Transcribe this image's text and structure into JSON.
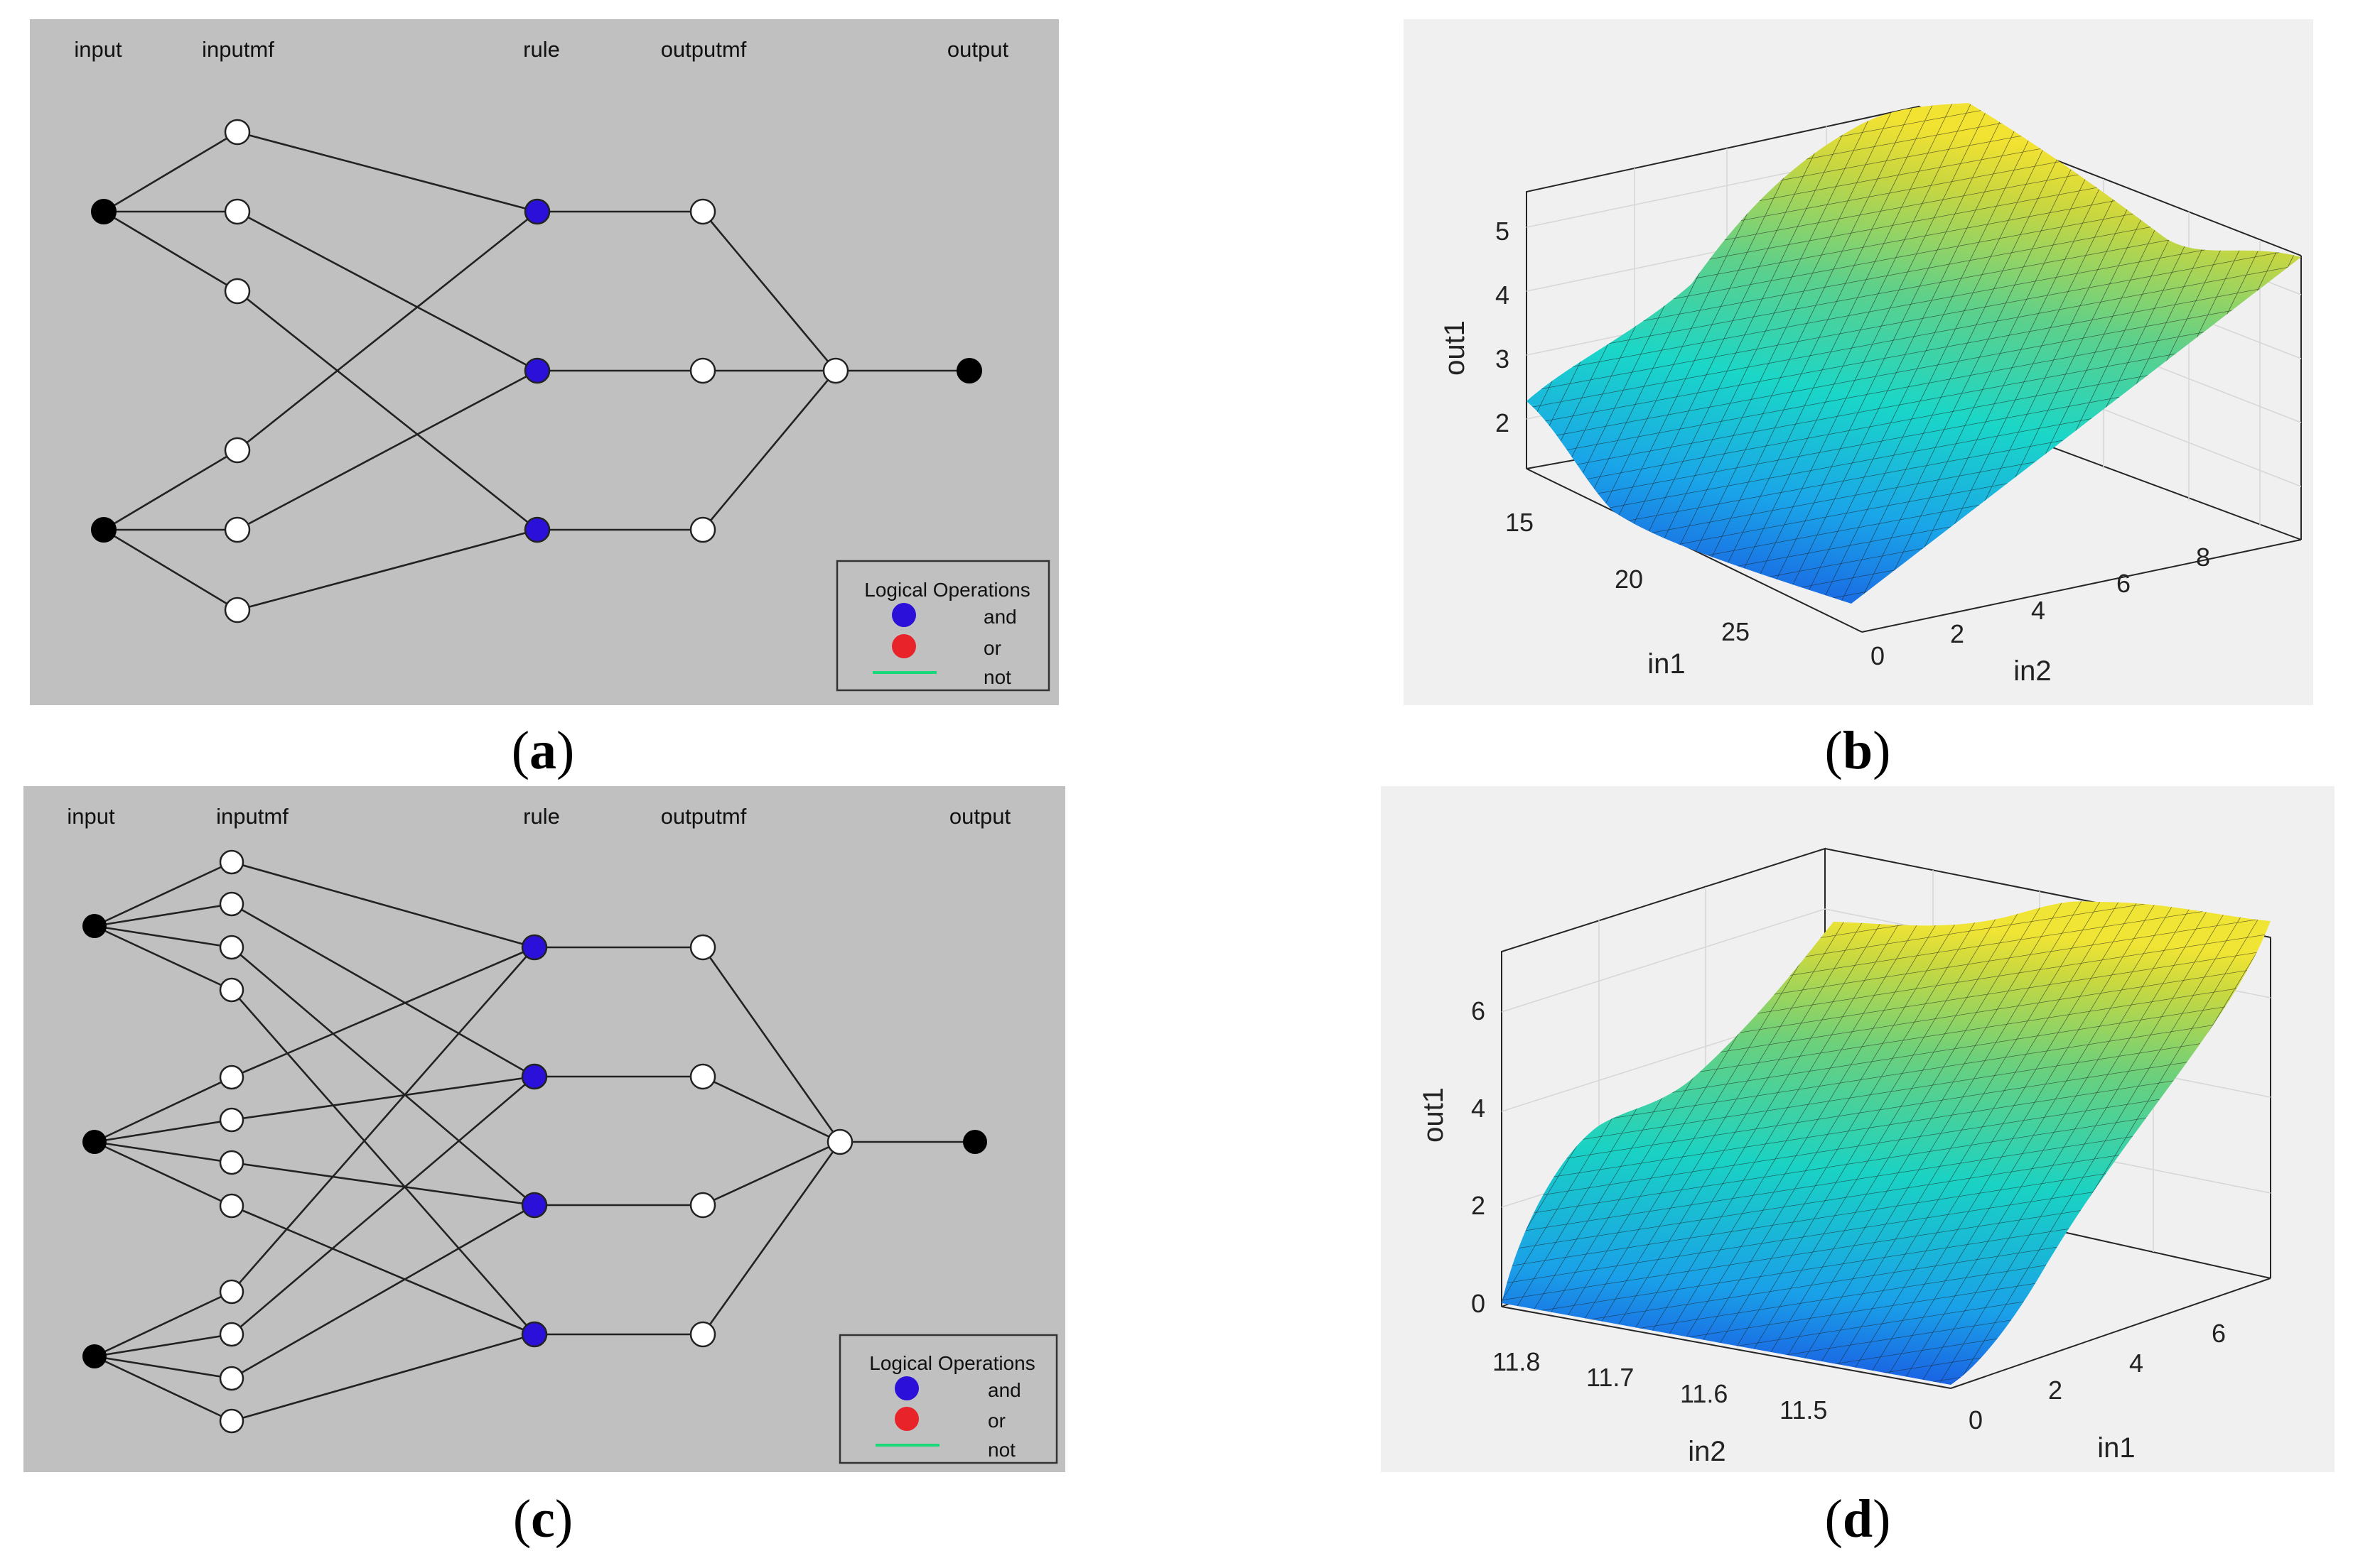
{
  "panel_a": {
    "caption_letter": "a",
    "columns": {
      "input": "input",
      "inputmf": "inputmf",
      "rule": "rule",
      "outputmf": "outputmf",
      "output": "output"
    },
    "legend": {
      "title": "Logical Operations",
      "and": "and",
      "or": "or",
      "not": "not"
    }
  },
  "panel_b": {
    "caption_letter": "b",
    "zlabel": "out1",
    "xlabel": "in1",
    "ylabel": "in2",
    "zticks": [
      "2",
      "3",
      "4",
      "5"
    ],
    "xticks": [
      "15",
      "20",
      "25"
    ],
    "yticks": [
      "0",
      "2",
      "4",
      "6",
      "8"
    ]
  },
  "panel_c": {
    "caption_letter": "c",
    "columns": {
      "input": "input",
      "inputmf": "inputmf",
      "rule": "rule",
      "outputmf": "outputmf",
      "output": "output"
    },
    "legend": {
      "title": "Logical Operations",
      "and": "and",
      "or": "or",
      "not": "not"
    }
  },
  "panel_d": {
    "caption_letter": "d",
    "zlabel": "out1",
    "xlabel": "in2",
    "ylabel": "in1",
    "zticks": [
      "0",
      "2",
      "4",
      "6"
    ],
    "xticks": [
      "11.8",
      "11.7",
      "11.6",
      "11.5"
    ],
    "yticks": [
      "0",
      "2",
      "4",
      "6"
    ]
  },
  "colors": {
    "panel_bg": "#c0c0c0",
    "plot_bg": "#f0f0f0",
    "and_node": "#2a10d8",
    "or_node": "#e8232a",
    "not_line": "#18d878",
    "input_node": "#000000"
  }
}
